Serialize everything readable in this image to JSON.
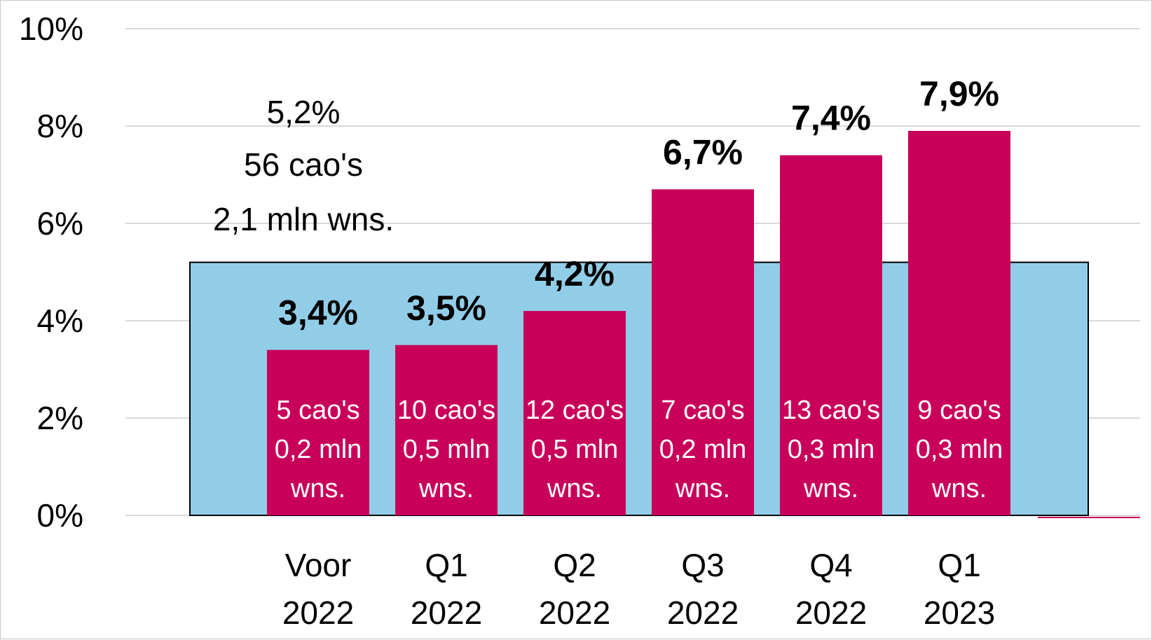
{
  "chart_data": {
    "type": "bar",
    "categories": [
      [
        "Voor",
        "2022"
      ],
      [
        "Q1",
        "2022"
      ],
      [
        "Q2",
        "2022"
      ],
      [
        "Q3",
        "2022"
      ],
      [
        "Q4",
        "2022"
      ],
      [
        "Q1",
        "2023"
      ]
    ],
    "values": [
      3.4,
      3.5,
      4.2,
      6.7,
      7.4,
      7.9
    ],
    "value_labels": [
      "3,4%",
      "3,5%",
      "4,2%",
      "6,7%",
      "7,4%",
      "7,9%"
    ],
    "bar_texts": [
      [
        "5 cao's",
        "0,2 mln",
        "wns."
      ],
      [
        "10 cao's",
        "0,5 mln",
        "wns."
      ],
      [
        "12 cao's",
        "0,5 mln",
        "wns."
      ],
      [
        "7 cao's",
        "0,2 mln",
        "wns."
      ],
      [
        "13 cao's",
        "0,3 mln",
        "wns."
      ],
      [
        "9 cao's",
        "0,3 mln",
        "wns."
      ]
    ],
    "background_bar": {
      "value": 5.2,
      "label_lines": [
        "5,2%",
        "56 cao's",
        "2,1 mln wns."
      ]
    },
    "yticks": [
      "0%",
      "2%",
      "4%",
      "6%",
      "8%",
      "10%"
    ],
    "ylim": [
      0,
      10
    ],
    "grid": true,
    "colors": {
      "bars": "#c8005a",
      "background_bar": "#92cde8",
      "grid": "#d9d9d9",
      "text_in_bar": "#ffffff"
    }
  }
}
